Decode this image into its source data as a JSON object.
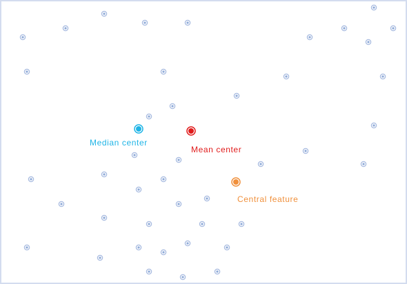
{
  "colors": {
    "background": "#ffffff",
    "frame": "#d3dcef",
    "point_ring": "#a8bbe0",
    "point_dot": "#8eaad8",
    "median": "#1eb4e6",
    "mean": "#e01b1b",
    "central": "#f0903c"
  },
  "icons": {
    "point": "ringed-dot",
    "median": "ringed-dot-large",
    "mean": "ringed-dot-large",
    "central": "ringed-dot-large"
  },
  "labels": {
    "median": "Median center",
    "mean": "Mean center",
    "central": "Central feature"
  }
}
